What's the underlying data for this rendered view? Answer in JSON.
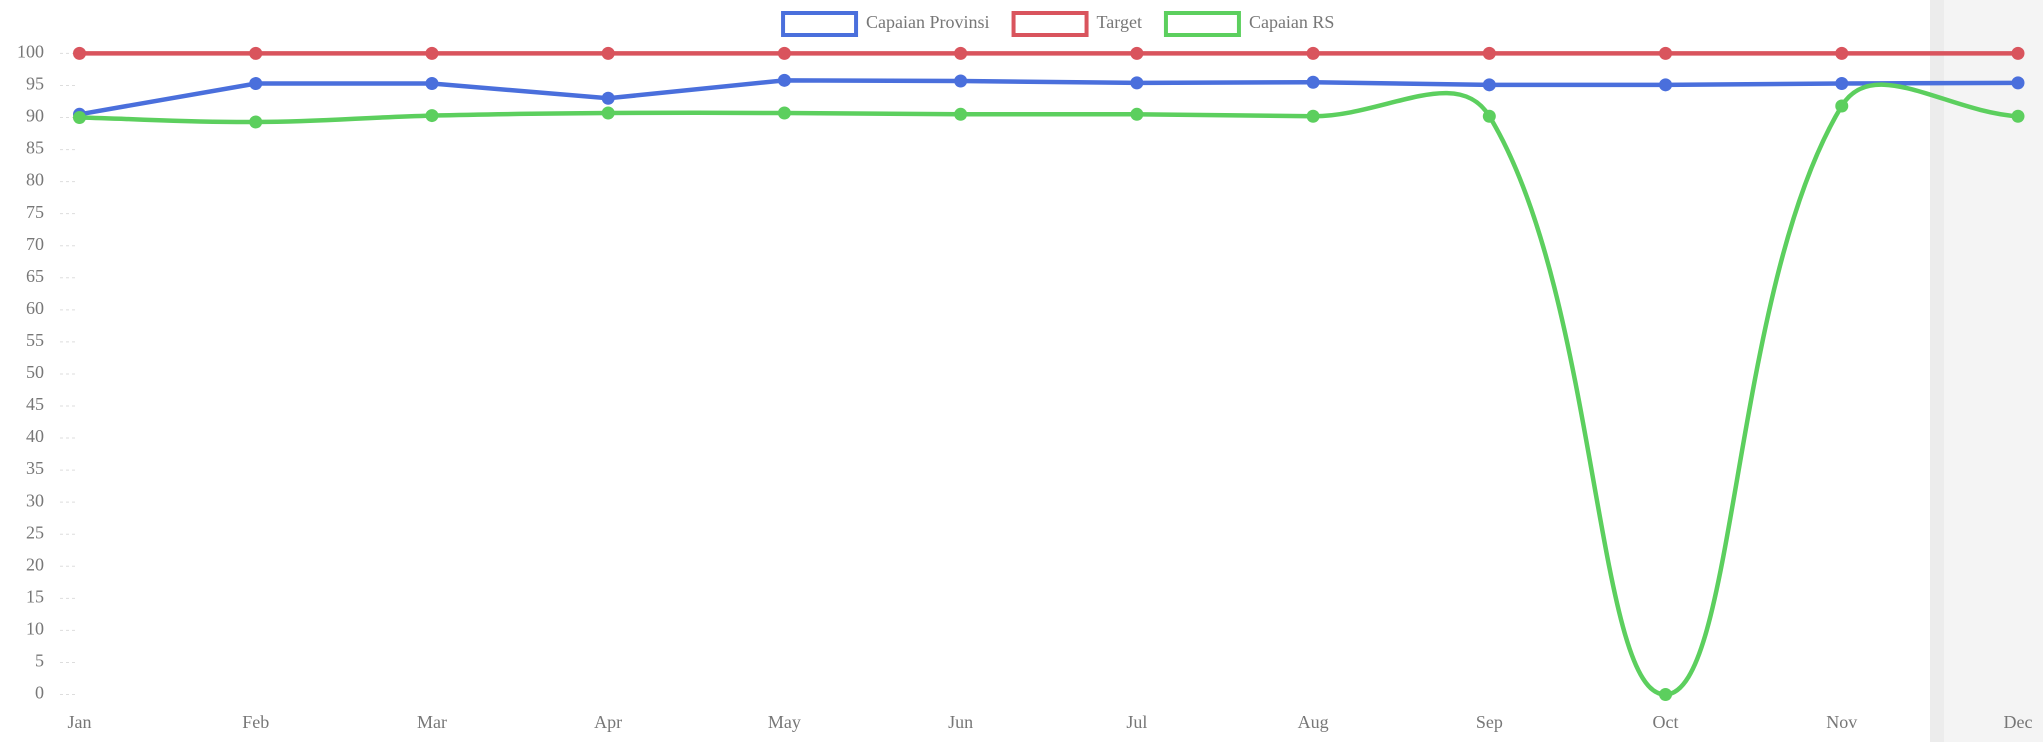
{
  "chart_data": {
    "type": "line",
    "categories": [
      "Jan",
      "Feb",
      "Mar",
      "Apr",
      "May",
      "Jun",
      "Jul",
      "Aug",
      "Sep",
      "Oct",
      "Nov",
      "Dec"
    ],
    "series": [
      {
        "name": "Capaian Provinsi",
        "color": "#4a6fdc",
        "smooth": false,
        "values": [
          90.5,
          95.3,
          95.3,
          93,
          95.8,
          95.7,
          95.4,
          95.5,
          95.1,
          95.1,
          95.3,
          95.4
        ]
      },
      {
        "name": "Target",
        "color": "#d9545d",
        "smooth": false,
        "values": [
          100,
          100,
          100,
          100,
          100,
          100,
          100,
          100,
          100,
          100,
          100,
          100
        ]
      },
      {
        "name": "Capaian RS",
        "color": "#5ccf5e",
        "smooth": true,
        "values": [
          90,
          89.3,
          90.3,
          90.7,
          90.7,
          90.5,
          90.5,
          90.2,
          90.2,
          0,
          91.8,
          90.2
        ]
      }
    ],
    "ylim": [
      0,
      100
    ],
    "yticks": [
      0,
      5,
      10,
      15,
      20,
      25,
      30,
      35,
      40,
      45,
      50,
      55,
      60,
      65,
      70,
      75,
      80,
      85,
      90,
      95,
      100
    ],
    "legend": "top"
  }
}
